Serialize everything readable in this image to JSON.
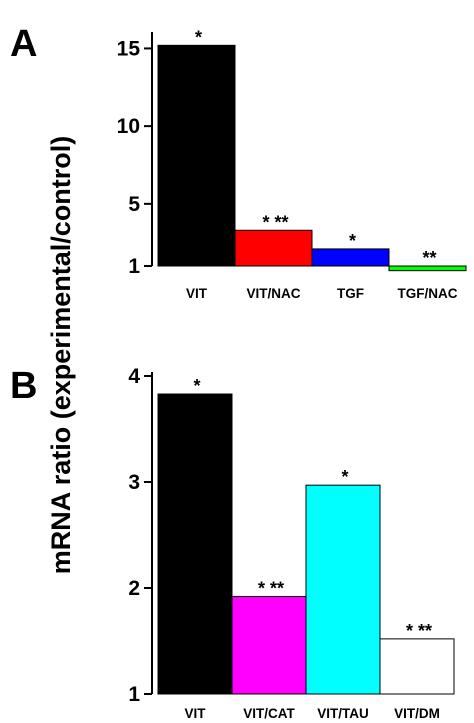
{
  "shared_ylabel": "mRNA ratio (experimental/control)",
  "chart_data": [
    {
      "panel_label": "A",
      "type": "bar",
      "categories": [
        "VIT",
        "VIT/NAC",
        "TGF",
        "TGF/NAC"
      ],
      "values": [
        15.2,
        3.3,
        2.1,
        0.7
      ],
      "colors": [
        "#000000",
        "#ff0000",
        "#0000ff",
        "#00ff00"
      ],
      "annotations": [
        "*",
        "* **",
        "*",
        "**"
      ],
      "yticks": [
        1,
        5,
        10,
        15
      ],
      "ylim": [
        1,
        15.8
      ],
      "baseline": 1,
      "xlabel": "",
      "ylabel": "mRNA ratio (experimental/control)"
    },
    {
      "panel_label": "B",
      "type": "bar",
      "categories": [
        "VIT",
        "VIT/CAT",
        "VIT/TAU",
        "VIT/DM"
      ],
      "values": [
        3.83,
        1.92,
        2.97,
        1.52
      ],
      "colors": [
        "#000000",
        "#ff00ff",
        "#00ffff",
        "#ffffff"
      ],
      "annotations": [
        "*",
        "* **",
        "*",
        "* **"
      ],
      "yticks": [
        1,
        2,
        3,
        4
      ],
      "ylim": [
        1,
        4
      ],
      "baseline": 1,
      "xlabel": "",
      "ylabel": "mRNA ratio (experimental/control)"
    }
  ]
}
